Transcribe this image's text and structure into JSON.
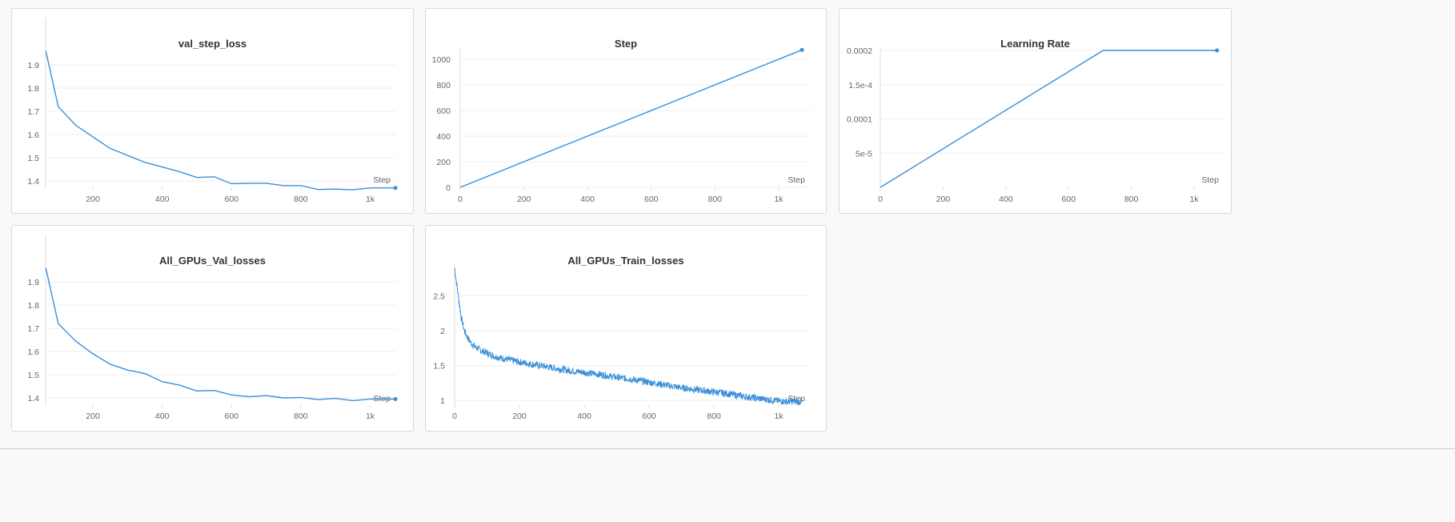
{
  "accent": "#3a8fd8",
  "chart_data": [
    {
      "type": "line",
      "title": "val_step_loss",
      "xlabel": "Step",
      "ylabel": "",
      "grid": true,
      "xticks": [
        {
          "v": 200,
          "label": "200"
        },
        {
          "v": 400,
          "label": "400"
        },
        {
          "v": 600,
          "label": "600"
        },
        {
          "v": 800,
          "label": "800"
        },
        {
          "v": 1000,
          "label": "1k"
        }
      ],
      "yticks": [
        {
          "v": 1.4,
          "label": "1.4"
        },
        {
          "v": 1.5,
          "label": "1.5"
        },
        {
          "v": 1.6,
          "label": "1.6"
        },
        {
          "v": 1.7,
          "label": "1.7"
        },
        {
          "v": 1.8,
          "label": "1.8"
        },
        {
          "v": 1.9,
          "label": "1.9"
        }
      ],
      "x": [
        64,
        100,
        150,
        200,
        250,
        300,
        350,
        400,
        450,
        500,
        550,
        600,
        650,
        700,
        750,
        800,
        850,
        900,
        950,
        1000,
        1073
      ],
      "y": [
        1.96,
        1.72,
        1.64,
        1.59,
        1.54,
        1.51,
        1.48,
        1.46,
        1.44,
        1.415,
        1.418,
        1.388,
        1.39,
        1.39,
        1.38,
        1.38,
        1.363,
        1.365,
        1.362,
        1.37,
        1.37
      ]
    },
    {
      "type": "line",
      "title": "Step",
      "xlabel": "Step",
      "ylabel": "",
      "grid": true,
      "xticks": [
        {
          "v": 0,
          "label": "0"
        },
        {
          "v": 200,
          "label": "200"
        },
        {
          "v": 400,
          "label": "400"
        },
        {
          "v": 600,
          "label": "600"
        },
        {
          "v": 800,
          "label": "800"
        },
        {
          "v": 1000,
          "label": "1k"
        }
      ],
      "yticks": [
        {
          "v": 0,
          "label": "0"
        },
        {
          "v": 200,
          "label": "200"
        },
        {
          "v": 400,
          "label": "400"
        },
        {
          "v": 600,
          "label": "600"
        },
        {
          "v": 800,
          "label": "800"
        },
        {
          "v": 1000,
          "label": "1000"
        }
      ],
      "x": [
        0,
        1073
      ],
      "y": [
        0,
        1073
      ]
    },
    {
      "type": "line",
      "title": "Learning Rate",
      "xlabel": "Step",
      "ylabel": "",
      "grid": true,
      "xticks": [
        {
          "v": 0,
          "label": "0"
        },
        {
          "v": 200,
          "label": "200"
        },
        {
          "v": 400,
          "label": "400"
        },
        {
          "v": 600,
          "label": "600"
        },
        {
          "v": 800,
          "label": "800"
        },
        {
          "v": 1000,
          "label": "1k"
        }
      ],
      "yticks": [
        {
          "v": 5e-05,
          "label": "5e-5"
        },
        {
          "v": 0.0001,
          "label": "0.0001"
        },
        {
          "v": 0.00015,
          "label": "1.5e-4"
        },
        {
          "v": 0.0002,
          "label": "0.0002"
        }
      ],
      "x": [
        0,
        710,
        1073
      ],
      "y": [
        0,
        0.0002,
        0.0002
      ]
    },
    {
      "type": "line",
      "title": "All_GPUs_Val_losses",
      "xlabel": "Step",
      "ylabel": "",
      "grid": true,
      "xticks": [
        {
          "v": 200,
          "label": "200"
        },
        {
          "v": 400,
          "label": "400"
        },
        {
          "v": 600,
          "label": "600"
        },
        {
          "v": 800,
          "label": "800"
        },
        {
          "v": 1000,
          "label": "1k"
        }
      ],
      "yticks": [
        {
          "v": 1.4,
          "label": "1.4"
        },
        {
          "v": 1.5,
          "label": "1.5"
        },
        {
          "v": 1.6,
          "label": "1.6"
        },
        {
          "v": 1.7,
          "label": "1.7"
        },
        {
          "v": 1.8,
          "label": "1.8"
        },
        {
          "v": 1.9,
          "label": "1.9"
        }
      ],
      "x": [
        64,
        100,
        150,
        200,
        250,
        300,
        350,
        400,
        450,
        500,
        550,
        600,
        650,
        700,
        750,
        800,
        850,
        900,
        950,
        1000,
        1073
      ],
      "y": [
        1.96,
        1.72,
        1.645,
        1.59,
        1.545,
        1.52,
        1.505,
        1.47,
        1.455,
        1.43,
        1.432,
        1.413,
        1.405,
        1.41,
        1.4,
        1.402,
        1.393,
        1.398,
        1.388,
        1.395,
        1.395
      ]
    },
    {
      "type": "line",
      "title": "All_GPUs_Train_losses",
      "xlabel": "Step",
      "ylabel": "",
      "grid": true,
      "xticks": [
        {
          "v": 0,
          "label": "0"
        },
        {
          "v": 200,
          "label": "200"
        },
        {
          "v": 400,
          "label": "400"
        },
        {
          "v": 600,
          "label": "600"
        },
        {
          "v": 800,
          "label": "800"
        },
        {
          "v": 1000,
          "label": "1k"
        }
      ],
      "yticks": [
        {
          "v": 1,
          "label": "1"
        },
        {
          "v": 1.5,
          "label": "1.5"
        },
        {
          "v": 2,
          "label": "2"
        },
        {
          "v": 2.5,
          "label": "2.5"
        }
      ],
      "x": [
        0,
        10,
        20,
        30,
        40,
        50,
        60,
        80,
        100,
        125,
        150,
        200,
        250,
        300,
        350,
        400,
        450,
        500,
        550,
        600,
        650,
        700,
        750,
        800,
        850,
        900,
        950,
        1000,
        1050,
        1073
      ],
      "y": [
        2.9,
        2.55,
        2.2,
        2.0,
        1.9,
        1.83,
        1.78,
        1.72,
        1.68,
        1.63,
        1.6,
        1.55,
        1.51,
        1.47,
        1.43,
        1.4,
        1.37,
        1.33,
        1.3,
        1.26,
        1.22,
        1.18,
        1.15,
        1.12,
        1.09,
        1.05,
        1.02,
        0.99,
        0.98,
        0.98
      ]
    }
  ]
}
